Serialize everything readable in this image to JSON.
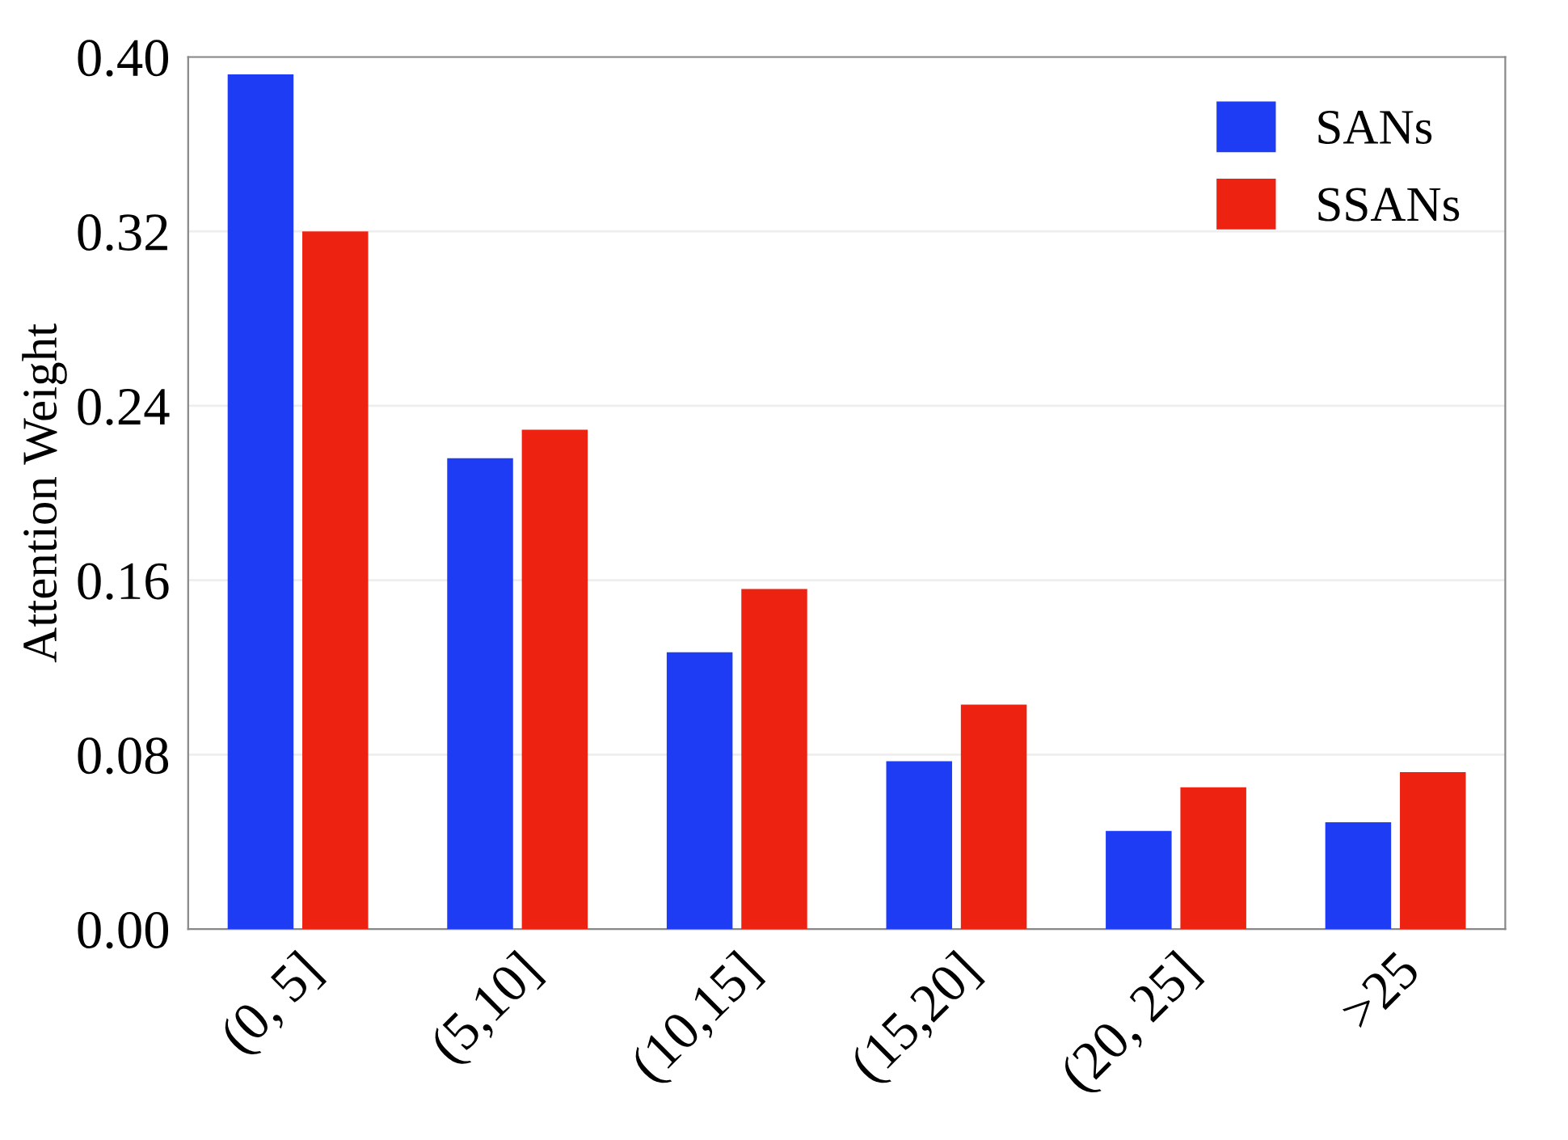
{
  "chart_data": {
    "type": "bar",
    "ylabel": "Attention Weight",
    "categories": [
      "(0, 5]",
      "(5,10]",
      "(10,15]",
      "(15,20]",
      "(20, 25]",
      ">25"
    ],
    "series": [
      {
        "name": "SANs",
        "color": "#1f3cf5",
        "values": [
          0.392,
          0.216,
          0.127,
          0.077,
          0.045,
          0.049
        ]
      },
      {
        "name": "SSANs",
        "color": "#ee2211",
        "values": [
          0.32,
          0.229,
          0.156,
          0.103,
          0.065,
          0.072
        ]
      }
    ],
    "ylim": [
      0,
      0.4
    ],
    "yticks": [
      {
        "value": 0,
        "label": "0.00"
      },
      {
        "value": 0.08,
        "label": "0.08"
      },
      {
        "value": 0.16,
        "label": "0.16"
      },
      {
        "value": 0.24,
        "label": "0.24"
      },
      {
        "value": 0.32,
        "label": "0.32"
      },
      {
        "value": 0.4,
        "label": "0.40"
      }
    ],
    "grid": "y",
    "legend": "top right"
  }
}
